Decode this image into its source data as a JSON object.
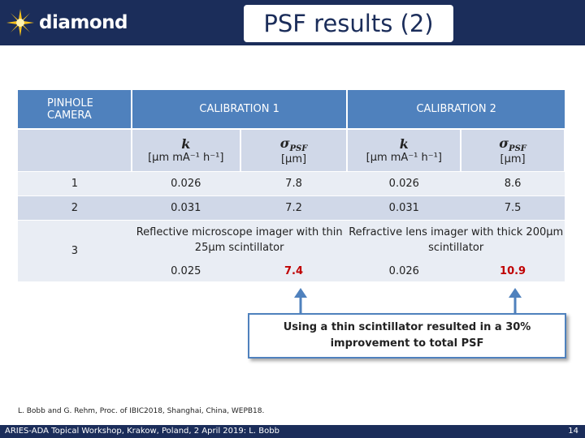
{
  "header": {
    "logo_text": "diamond",
    "title": "PSF results (2)"
  },
  "table": {
    "col_pinhole": "PINHOLE CAMERA",
    "col_cal1": "CALIBRATION 1",
    "col_cal2": "CALIBRATION 2",
    "symbol_k": "k",
    "unit_k": "[μm mA⁻¹ h⁻¹]",
    "symbol_sigma": "σ",
    "symbol_sigma_sub": "PSF",
    "unit_sigma": "[μm]",
    "rows": [
      {
        "id": "1",
        "k1": "0.026",
        "s1": "7.8",
        "k2": "0.026",
        "s2": "8.6"
      },
      {
        "id": "2",
        "k1": "0.031",
        "s1": "7.2",
        "k2": "0.031",
        "s2": "7.5"
      }
    ],
    "desc_cal1": "Reflective microscope imager with thin 25μm scintillator",
    "desc_cal2": "Refractive lens imager with thick 200μm scintillator",
    "row3": {
      "id": "3",
      "k1": "0.025",
      "s1": "7.4",
      "k2": "0.026",
      "s2": "10.9"
    }
  },
  "callout": {
    "text": "Using a thin scintillator resulted in a 30% improvement to total PSF"
  },
  "reference": "L. Bobb and G. Rehm, Proc. of IBIC2018, Shanghai, China, WEPB18.",
  "footer": {
    "left": "ARIES-ADA Topical Workshop, Krakow, Poland, 2 April 2019: L. Bobb",
    "page": "14"
  },
  "colors": {
    "brand_navy": "#1b2d5a",
    "table_header": "#4f81bd",
    "highlight_red": "#c00000"
  }
}
